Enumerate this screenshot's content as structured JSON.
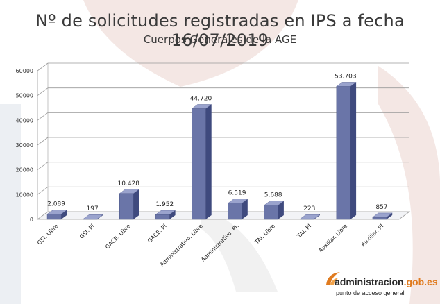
{
  "title": "Nº de solicitudes registradas en IPS a fecha 16/07/2019",
  "subtitle": "Cuerpos Generales de la AGE",
  "logo": {
    "domain_name": "administracion",
    "domain_tld": ".gob.es",
    "tagline": "punto de acceso general"
  },
  "colors": {
    "bar_front": "#6a75a8",
    "bar_top": "#9aa3cd",
    "bar_side": "#3f4a7e",
    "logo_accent": "#e07b1f",
    "background_shape": "#f3e4e0"
  },
  "chart_data": {
    "type": "bar",
    "categories": [
      "GSI. Libre",
      "GSI. PI",
      "GACE. Libre",
      "GACE. PI",
      "Administrativo. Libre",
      "Administrativo. PI.",
      "TAI. Libre",
      "TAI. PI",
      "Auxiliar. Libre",
      "Auxiliar. PI"
    ],
    "values": [
      2089,
      197,
      10428,
      1952,
      44720,
      6519,
      5688,
      223,
      53703,
      857
    ],
    "data_labels": [
      "2.089",
      "197",
      "10.428",
      "1.952",
      "44.720",
      "6.519",
      "5.688",
      "223",
      "53.703",
      "857"
    ],
    "y_ticks": [
      "0",
      "10000",
      "20000",
      "30000",
      "40000",
      "50000",
      "60000"
    ],
    "ylim": [
      0,
      60000
    ],
    "title": "Nº de solicitudes registradas en IPS a fecha 16/07/2019",
    "subtitle": "Cuerpos Generales de la AGE",
    "xlabel": "",
    "ylabel": "",
    "grid": true,
    "legend": "none",
    "style": "3d-column"
  }
}
